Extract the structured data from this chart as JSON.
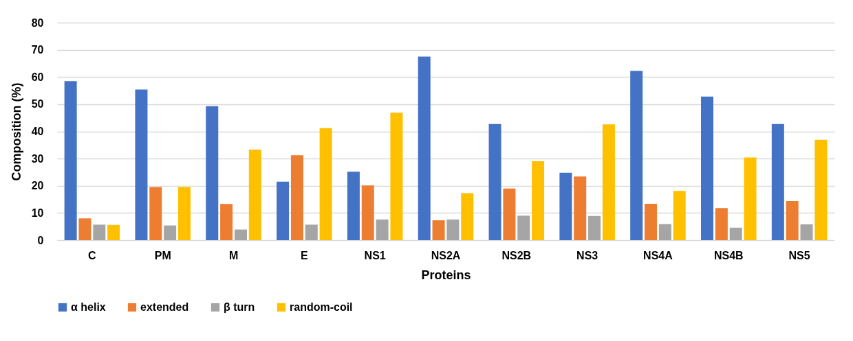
{
  "chart_data": {
    "type": "bar",
    "xlabel": "Proteins",
    "ylabel": "Composition (%)",
    "categories": [
      "C",
      "PM",
      "M",
      "E",
      "NS1",
      "NS2A",
      "NS2B",
      "NS3",
      "NS4A",
      "NS4B",
      "NS5"
    ],
    "series": [
      {
        "name": "α helix",
        "color": "#4472c4",
        "values": [
          58.5,
          55.4,
          49.3,
          21.5,
          25.2,
          67.5,
          42.7,
          24.8,
          62.3,
          52.8,
          42.7
        ]
      },
      {
        "name": "extended",
        "color": "#ed7d31",
        "values": [
          8,
          19.5,
          13.3,
          31.2,
          20.1,
          7.3,
          19,
          23.4,
          13.4,
          11.8,
          14.4
        ]
      },
      {
        "name": "β turn",
        "color": "#a5a5a5",
        "values": [
          5.7,
          5.4,
          3.9,
          5.7,
          7.6,
          7.6,
          9,
          8.9,
          5.9,
          4.6,
          5.8
        ]
      },
      {
        "name": "random-coil",
        "color": "#ffc000",
        "values": [
          5.6,
          19.5,
          33.3,
          41.2,
          46.9,
          17.3,
          29,
          42.6,
          18.1,
          30.4,
          36.9
        ]
      }
    ],
    "ylim": [
      0,
      80
    ],
    "yticks": [
      0,
      10,
      20,
      30,
      40,
      50,
      60,
      70,
      80
    ],
    "grid": "y",
    "legend": "bottom"
  }
}
